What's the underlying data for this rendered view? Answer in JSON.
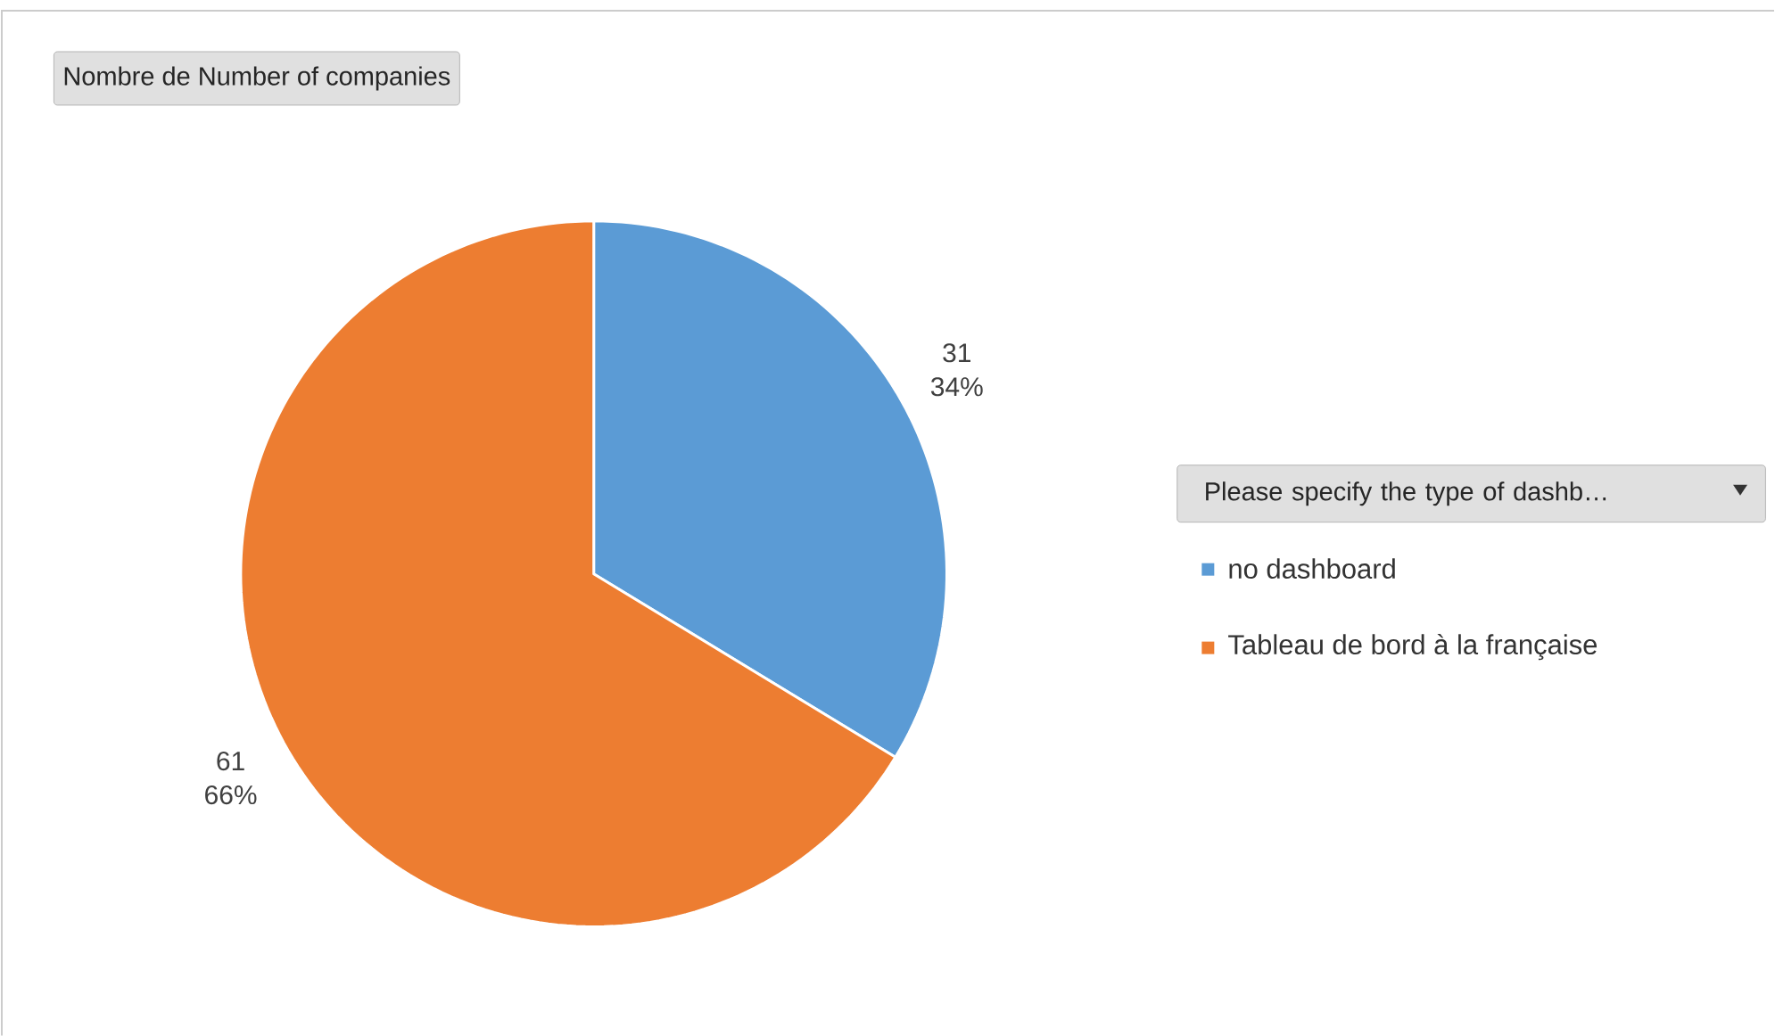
{
  "chart_data": {
    "type": "pie",
    "title": "Nombre de Number of companies",
    "legend_title": "Please specify the type of dashb…",
    "categories": [
      "no dashboard",
      "Tableau de bord à la française"
    ],
    "values": [
      31,
      61
    ],
    "colors": [
      "#5b9bd5",
      "#ed7d31"
    ],
    "value_labels": [
      "31 34%",
      "61 66%"
    ],
    "legend": "right"
  }
}
